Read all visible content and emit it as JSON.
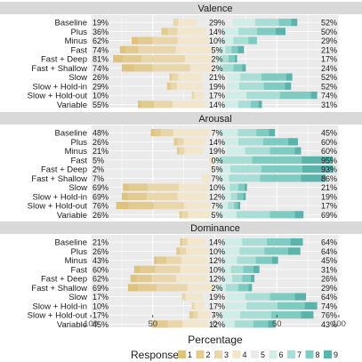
{
  "chart_data": {
    "type": "bar",
    "subtype": "diverging-stacked",
    "xlabel": "Percentage",
    "x_ticks": [
      "100",
      "50",
      "0",
      "50",
      "100"
    ],
    "x_range": [
      -100,
      100
    ],
    "grid": true,
    "legend_position": "bottom",
    "legend": {
      "title": "Response",
      "levels": [
        "1",
        "2",
        "3",
        "4",
        "5",
        "6",
        "7",
        "8",
        "9"
      ],
      "colors": [
        "#DFC27D",
        "#E3CA8E",
        "#E9D7AB",
        "#F2E7CC",
        "#EBEBEB",
        "#D0EDE8",
        "#A8DED6",
        "#7DCBC1",
        "#5AB4AC"
      ]
    },
    "panels": [
      {
        "title": "Valence",
        "rows": [
          {
            "label": "Baseline",
            "left_pct": "19%",
            "neutral_pct": "29%",
            "right_pct": "52%",
            "values": [
              0,
              0,
              4,
              15,
              29,
              18,
              19,
              10,
              5
            ]
          },
          {
            "label": "Plus",
            "left_pct": "36%",
            "neutral_pct": "14%",
            "right_pct": "50%",
            "values": [
              0,
              5,
              8,
              23,
              14,
              12,
              15,
              15,
              8
            ]
          },
          {
            "label": "Minus",
            "left_pct": "62%",
            "neutral_pct": "10%",
            "right_pct": "29%",
            "values": [
              5,
              12,
              20,
              25,
              10,
              10,
              12,
              7,
              0
            ]
          },
          {
            "label": "Fast",
            "left_pct": "74%",
            "neutral_pct": "5%",
            "right_pct": "21%",
            "values": [
              5,
              10,
              30,
              29,
              5,
              6,
              5,
              5,
              5
            ]
          },
          {
            "label": "Fast + Deep",
            "left_pct": "81%",
            "neutral_pct": "2%",
            "right_pct": "17%",
            "values": [
              8,
              15,
              35,
              23,
              2,
              5,
              5,
              5,
              2
            ]
          },
          {
            "label": "Fast + Shallow",
            "left_pct": "74%",
            "neutral_pct": "2%",
            "right_pct": "24%",
            "values": [
              10,
              15,
              30,
              19,
              2,
              5,
              9,
              7,
              3
            ]
          },
          {
            "label": "Slow",
            "left_pct": "26%",
            "neutral_pct": "21%",
            "right_pct": "52%",
            "values": [
              0,
              2,
              5,
              19,
              21,
              10,
              17,
              20,
              5
            ]
          },
          {
            "label": "Slow + Hold-in",
            "left_pct": "29%",
            "neutral_pct": "19%",
            "right_pct": "52%",
            "values": [
              0,
              3,
              5,
              21,
              19,
              10,
              20,
              17,
              5
            ]
          },
          {
            "label": "Slow + Hold-out",
            "left_pct": "10%",
            "neutral_pct": "17%",
            "right_pct": "74%",
            "values": [
              0,
              0,
              2,
              8,
              17,
              17,
              27,
              25,
              5
            ]
          },
          {
            "label": "Variable",
            "left_pct": "55%",
            "neutral_pct": "14%",
            "right_pct": "31%",
            "values": [
              3,
              10,
              15,
              27,
              14,
              12,
              10,
              6,
              3
            ]
          }
        ]
      },
      {
        "title": "Arousal",
        "rows": [
          {
            "label": "Baseline",
            "left_pct": "48%",
            "neutral_pct": "7%",
            "right_pct": "45%",
            "values": [
              3,
              5,
              10,
              30,
              7,
              15,
              15,
              10,
              5
            ]
          },
          {
            "label": "Plus",
            "left_pct": "26%",
            "neutral_pct": "14%",
            "right_pct": "60%",
            "values": [
              0,
              3,
              5,
              18,
              14,
              12,
              20,
              20,
              8
            ]
          },
          {
            "label": "Minus",
            "left_pct": "21%",
            "neutral_pct": "19%",
            "right_pct": "60%",
            "values": [
              0,
              2,
              4,
              15,
              19,
              15,
              20,
              20,
              5
            ]
          },
          {
            "label": "Fast",
            "left_pct": "5%",
            "neutral_pct": "0%",
            "right_pct": "95%",
            "values": [
              0,
              0,
              0,
              5,
              0,
              5,
              25,
              40,
              25
            ]
          },
          {
            "label": "Fast + Deep",
            "left_pct": "2%",
            "neutral_pct": "5%",
            "right_pct": "93%",
            "values": [
              0,
              0,
              0,
              2,
              5,
              10,
              25,
              33,
              25
            ]
          },
          {
            "label": "Fast + Shallow",
            "left_pct": "7%",
            "neutral_pct": "7%",
            "right_pct": "86%",
            "values": [
              0,
              0,
              0,
              7,
              7,
              8,
              25,
              33,
              20
            ]
          },
          {
            "label": "Slow",
            "left_pct": "69%",
            "neutral_pct": "10%",
            "right_pct": "21%",
            "values": [
              5,
              15,
              25,
              24,
              10,
              7,
              7,
              5,
              2
            ]
          },
          {
            "label": "Slow + Hold-in",
            "left_pct": "69%",
            "neutral_pct": "12%",
            "right_pct": "19%",
            "values": [
              5,
              15,
              25,
              24,
              12,
              7,
              5,
              5,
              2
            ]
          },
          {
            "label": "Slow + Hold-out",
            "left_pct": "76%",
            "neutral_pct": "7%",
            "right_pct": "17%",
            "values": [
              10,
              20,
              25,
              21,
              7,
              7,
              5,
              3,
              2
            ]
          },
          {
            "label": "Variable",
            "left_pct": "26%",
            "neutral_pct": "5%",
            "right_pct": "69%",
            "values": [
              0,
              2,
              5,
              19,
              5,
              15,
              27,
              20,
              7
            ]
          }
        ]
      },
      {
        "title": "Dominance",
        "rows": [
          {
            "label": "Baseline",
            "left_pct": "21%",
            "neutral_pct": "14%",
            "right_pct": "64%",
            "values": [
              0,
              2,
              4,
              15,
              14,
              15,
              20,
              19,
              10
            ]
          },
          {
            "label": "Plus",
            "left_pct": "26%",
            "neutral_pct": "10%",
            "right_pct": "64%",
            "values": [
              0,
              3,
              5,
              18,
              10,
              15,
              20,
              19,
              10
            ]
          },
          {
            "label": "Minus",
            "left_pct": "43%",
            "neutral_pct": "12%",
            "right_pct": "45%",
            "values": [
              2,
              8,
              12,
              21,
              12,
              12,
              15,
              13,
              5
            ]
          },
          {
            "label": "Fast",
            "left_pct": "60%",
            "neutral_pct": "10%",
            "right_pct": "31%",
            "values": [
              5,
              12,
              20,
              23,
              10,
              8,
              10,
              8,
              5
            ]
          },
          {
            "label": "Fast + Deep",
            "left_pct": "62%",
            "neutral_pct": "12%",
            "right_pct": "26%",
            "values": [
              5,
              12,
              20,
              25,
              12,
              8,
              8,
              7,
              3
            ]
          },
          {
            "label": "Fast + Shallow",
            "left_pct": "69%",
            "neutral_pct": "2%",
            "right_pct": "29%",
            "values": [
              8,
              15,
              25,
              21,
              2,
              8,
              10,
              8,
              3
            ]
          },
          {
            "label": "Slow",
            "left_pct": "17%",
            "neutral_pct": "19%",
            "right_pct": "64%",
            "values": [
              0,
              0,
              3,
              14,
              19,
              15,
              20,
              20,
              9
            ]
          },
          {
            "label": "Slow + Hold-in",
            "left_pct": "10%",
            "neutral_pct": "17%",
            "right_pct": "74%",
            "values": [
              0,
              0,
              2,
              8,
              17,
              17,
              25,
              22,
              10
            ]
          },
          {
            "label": "Slow + Hold-out",
            "left_pct": "17%",
            "neutral_pct": "7%",
            "right_pct": "76%",
            "values": [
              0,
              3,
              4,
              10,
              7,
              17,
              25,
              24,
              10
            ]
          },
          {
            "label": "Variable",
            "left_pct": "45%",
            "neutral_pct": "12%",
            "right_pct": "43%",
            "values": [
              5,
              8,
              12,
              20,
              12,
              10,
              15,
              12,
              6
            ]
          }
        ]
      }
    ]
  }
}
